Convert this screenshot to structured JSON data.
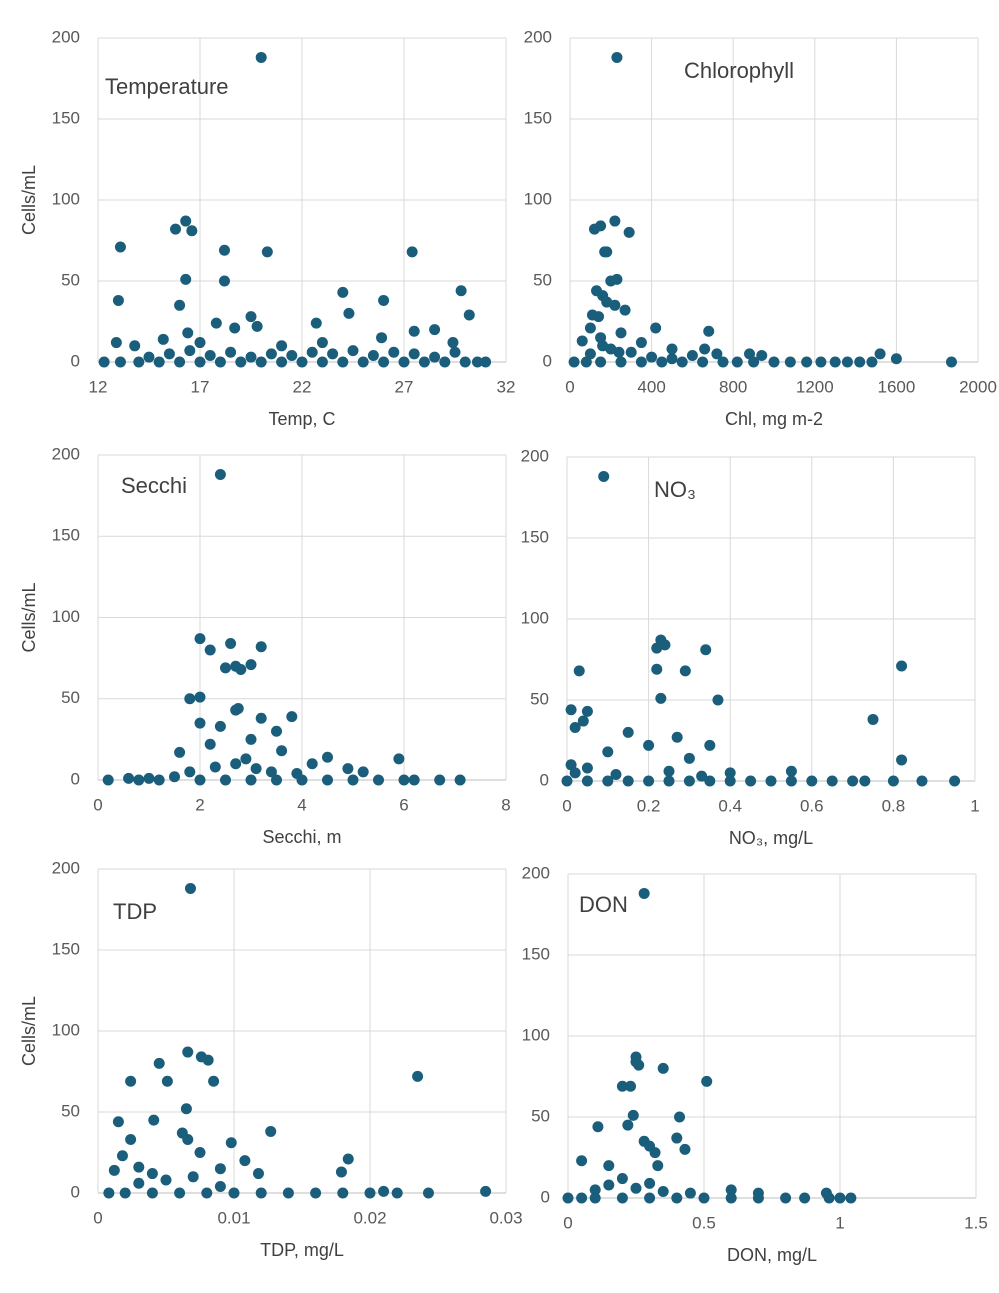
{
  "chart_data": [
    {
      "type": "scatter",
      "title": "Temperature",
      "x_label": "Temp, C",
      "y_label": "Cells/mL",
      "color": "#1a5e7b",
      "grid": true,
      "xlim": [
        12,
        32
      ],
      "xticks": [
        12,
        17,
        22,
        27,
        32
      ],
      "ylim": [
        0,
        200
      ],
      "yticks": [
        0,
        50,
        100,
        150,
        200
      ],
      "x": [
        20,
        15.8,
        16.3,
        16.6,
        13.1,
        18.2,
        20.3,
        27.4,
        16.3,
        18.2,
        13,
        16,
        24,
        26,
        29.8,
        30.2,
        17.8,
        19.5,
        18.7,
        19.8,
        24.3,
        22.7,
        28.5,
        27.5,
        12.9,
        13.8,
        15.2,
        16.4,
        17,
        21,
        25.9,
        29.4,
        23,
        12.3,
        13.1,
        14,
        15,
        16,
        17,
        18,
        19,
        20,
        21,
        22,
        23,
        24,
        25,
        26,
        27,
        28,
        29,
        30,
        31,
        30.6,
        14.5,
        15.5,
        16.5,
        17.5,
        18.5,
        19.5,
        20.5,
        21.5,
        22.5,
        23.5,
        24.5,
        25.5,
        26.5,
        27.5,
        28.5,
        29.5
      ],
      "values": [
        188,
        82,
        87,
        81,
        71,
        69,
        68,
        68,
        51,
        50,
        38,
        35,
        43,
        38,
        44,
        29,
        24,
        28,
        21,
        22,
        30,
        24,
        20,
        19,
        12,
        10,
        14,
        18,
        12,
        10,
        15,
        12,
        12,
        0,
        0,
        0,
        0,
        0,
        0,
        0,
        0,
        0,
        0,
        0,
        0,
        0,
        0,
        0,
        0,
        0,
        0,
        0,
        0,
        0,
        3,
        5,
        7,
        4,
        6,
        3,
        5,
        4,
        6,
        5,
        7,
        4,
        6,
        5,
        3,
        6
      ]
    },
    {
      "type": "scatter",
      "title": "Chlorophyll",
      "x_label": "Chl, mg m-2",
      "color": "#1a5e7b",
      "grid": true,
      "xlim": [
        0,
        2000
      ],
      "xticks": [
        0,
        400,
        800,
        1200,
        1600,
        2000
      ],
      "ylim": [
        0,
        200
      ],
      "yticks": [
        0,
        50,
        100,
        150,
        200
      ],
      "x": [
        230,
        120,
        150,
        220,
        290,
        170,
        180,
        200,
        230,
        130,
        160,
        180,
        220,
        270,
        110,
        140,
        60,
        100,
        420,
        680,
        150,
        250,
        350,
        500,
        660,
        600,
        720,
        880,
        940,
        1520,
        20,
        80,
        150,
        250,
        350,
        450,
        550,
        650,
        750,
        820,
        900,
        1000,
        1080,
        1160,
        1230,
        1300,
        1360,
        1420,
        1480,
        1600,
        1870,
        100,
        200,
        300,
        400,
        500,
        160,
        240
      ],
      "values": [
        188,
        82,
        84,
        87,
        80,
        68,
        68,
        50,
        51,
        44,
        41,
        37,
        35,
        32,
        29,
        28,
        13,
        21,
        21,
        19,
        15,
        18,
        12,
        8,
        8,
        4,
        5,
        5,
        4,
        5,
        0,
        0,
        0,
        0,
        0,
        0,
        0,
        0,
        0,
        0,
        0,
        0,
        0,
        0,
        0,
        0,
        0,
        0,
        0,
        2,
        0,
        5,
        8,
        6,
        3,
        2,
        10,
        6
      ]
    },
    {
      "type": "scatter",
      "title": "Secchi",
      "x_label": "Secchi, m",
      "y_label": "Cells/mL",
      "color": "#1a5e7b",
      "grid": true,
      "xlim": [
        0,
        8
      ],
      "xticks": [
        0,
        2,
        4,
        6,
        8
      ],
      "ylim": [
        0,
        200
      ],
      "yticks": [
        0,
        50,
        100,
        150,
        200
      ],
      "x": [
        2.4,
        2,
        2.2,
        2.6,
        3.2,
        2.5,
        2.7,
        3,
        2.8,
        1.8,
        2,
        2.75,
        2.7,
        2,
        3.2,
        3.8,
        2.4,
        3.5,
        1.6,
        2.2,
        3,
        3.6,
        4.5,
        5.9,
        4.2,
        4.9,
        5.2,
        0.2,
        0.6,
        0.8,
        1,
        1.2,
        1.5,
        2,
        2.5,
        3,
        3.5,
        4,
        4.5,
        5,
        5.5,
        6,
        6.2,
        6.7,
        7.1,
        1.8,
        2.3,
        2.7,
        3.1,
        3.4,
        3.9,
        2.9
      ],
      "values": [
        188,
        87,
        80,
        84,
        82,
        69,
        70,
        71,
        68,
        50,
        51,
        44,
        43,
        35,
        38,
        39,
        33,
        30,
        17,
        22,
        25,
        18,
        14,
        13,
        10,
        7,
        5,
        0,
        1,
        0,
        1,
        0,
        2,
        0,
        0,
        0,
        0,
        0,
        0,
        0,
        0,
        0,
        0,
        0,
        0,
        5,
        8,
        10,
        7,
        5,
        4,
        13
      ]
    },
    {
      "type": "scatter",
      "title": "NO₃",
      "x_label": "NO₃, mg/L",
      "color": "#1a5e7b",
      "grid": true,
      "xlim": [
        0,
        1
      ],
      "xticks": [
        0,
        0.2,
        0.4,
        0.6,
        0.8,
        1
      ],
      "ylim": [
        0,
        200
      ],
      "yticks": [
        0,
        50,
        100,
        150,
        200
      ],
      "x": [
        0.09,
        0.23,
        0.24,
        0.22,
        0.34,
        0.82,
        0.03,
        0.22,
        0.29,
        0.23,
        0.37,
        0.75,
        0.01,
        0.05,
        0.02,
        0.04,
        0.15,
        0.27,
        0.35,
        0.82,
        0.2,
        0.1,
        0.4,
        0.55,
        0.3,
        0,
        0.05,
        0.1,
        0.15,
        0.2,
        0.25,
        0.3,
        0.35,
        0.4,
        0.45,
        0.5,
        0.55,
        0.6,
        0.65,
        0.7,
        0.73,
        0.8,
        0.87,
        0.95,
        0.01,
        0.02,
        0.05,
        0.12,
        0.25,
        0.33
      ],
      "values": [
        188,
        87,
        84,
        82,
        81,
        71,
        68,
        69,
        68,
        51,
        50,
        38,
        44,
        43,
        33,
        37,
        30,
        27,
        22,
        13,
        22,
        18,
        5,
        6,
        14,
        0,
        0,
        0,
        0,
        0,
        0,
        0,
        0,
        0,
        0,
        0,
        0,
        0,
        0,
        0,
        0,
        0,
        0,
        0,
        10,
        5,
        8,
        4,
        6,
        3
      ]
    },
    {
      "type": "scatter",
      "title": "TDP",
      "x_label": "TDP, mg/L",
      "y_label": "Cells/mL",
      "color": "#1a5e7b",
      "grid": true,
      "xlim": [
        0,
        0.03
      ],
      "xticks": [
        0,
        0.01,
        0.02,
        0.03
      ],
      "ylim": [
        0,
        200
      ],
      "yticks": [
        0,
        50,
        100,
        150,
        200
      ],
      "x": [
        0.0068,
        0.0066,
        0.0076,
        0.0081,
        0.0045,
        0.0024,
        0.0051,
        0.0085,
        0.0235,
        0.0065,
        0.0015,
        0.0041,
        0.0062,
        0.0066,
        0.0024,
        0.0098,
        0.0127,
        0.0075,
        0.0018,
        0.0108,
        0.0184,
        0.0179,
        0.0118,
        0.009,
        0.003,
        0.0012,
        0.0008,
        0.002,
        0.004,
        0.006,
        0.008,
        0.01,
        0.012,
        0.014,
        0.016,
        0.018,
        0.02,
        0.021,
        0.022,
        0.0243,
        0.0285,
        0.003,
        0.005,
        0.007,
        0.009,
        0.004
      ],
      "values": [
        188,
        87,
        84,
        82,
        80,
        69,
        69,
        69,
        72,
        52,
        44,
        45,
        37,
        33,
        33,
        31,
        38,
        25,
        23,
        20,
        21,
        13,
        12,
        15,
        16,
        14,
        0,
        0,
        0,
        0,
        0,
        0,
        0,
        0,
        0,
        0,
        0,
        1,
        0,
        0,
        1,
        6,
        8,
        10,
        4,
        12
      ]
    },
    {
      "type": "scatter",
      "title": "DON",
      "x_label": "DON, mg/L",
      "color": "#1a5e7b",
      "grid": true,
      "xlim": [
        0,
        1.5
      ],
      "xticks": [
        0,
        0.5,
        1,
        1.5
      ],
      "ylim": [
        0,
        200
      ],
      "yticks": [
        0,
        50,
        100,
        150,
        200
      ],
      "x": [
        0.28,
        0.25,
        0.25,
        0.26,
        0.35,
        0.51,
        0.2,
        0.23,
        0.24,
        0.22,
        0.11,
        0.41,
        0.28,
        0.3,
        0.32,
        0.05,
        0.4,
        0.43,
        0.33,
        0.15,
        0.6,
        0.7,
        0,
        0.05,
        0.1,
        0.2,
        0.3,
        0.4,
        0.5,
        0.6,
        0.7,
        0.8,
        0.87,
        0.95,
        0.96,
        1,
        1.04,
        0.1,
        0.15,
        0.2,
        0.25,
        0.3,
        0.35,
        0.45
      ],
      "values": [
        188,
        87,
        84,
        82,
        80,
        72,
        69,
        69,
        51,
        45,
        44,
        50,
        35,
        32,
        28,
        23,
        37,
        30,
        20,
        20,
        5,
        3,
        0,
        0,
        0,
        0,
        0,
        0,
        0,
        0,
        0,
        0,
        0,
        3,
        0,
        0,
        0,
        5,
        8,
        12,
        6,
        9,
        4,
        3
      ]
    }
  ]
}
